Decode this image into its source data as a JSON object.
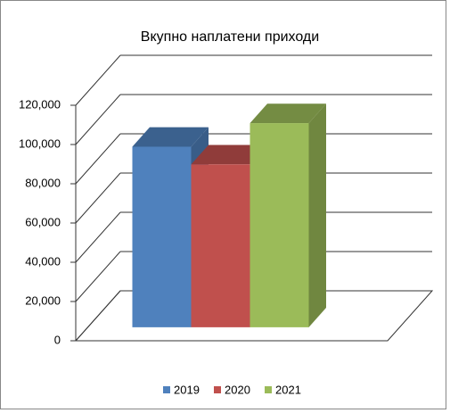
{
  "chart_data": {
    "type": "bar3d",
    "title": "Вкупно наплатени приходи",
    "series": [
      {
        "name": "2019",
        "color": "#4f81bd",
        "values": [
          92000
        ]
      },
      {
        "name": "2020",
        "color": "#c0504d",
        "values": [
          83000
        ]
      },
      {
        "name": "2021",
        "color": "#9bbb59",
        "values": [
          104000
        ]
      }
    ],
    "ylim": [
      0,
      120000
    ],
    "yticks": [
      0,
      {
        "value": 20000,
        "label": "20,000"
      },
      {
        "value": 40000,
        "label": "40,000"
      },
      {
        "value": 60000,
        "label": "60,000"
      },
      {
        "value": 80000,
        "label": "80,000"
      },
      {
        "value": 100000,
        "label": "100,000"
      },
      {
        "value": 120000,
        "label": "120,000"
      }
    ],
    "grid": true,
    "legend": "bottom"
  }
}
